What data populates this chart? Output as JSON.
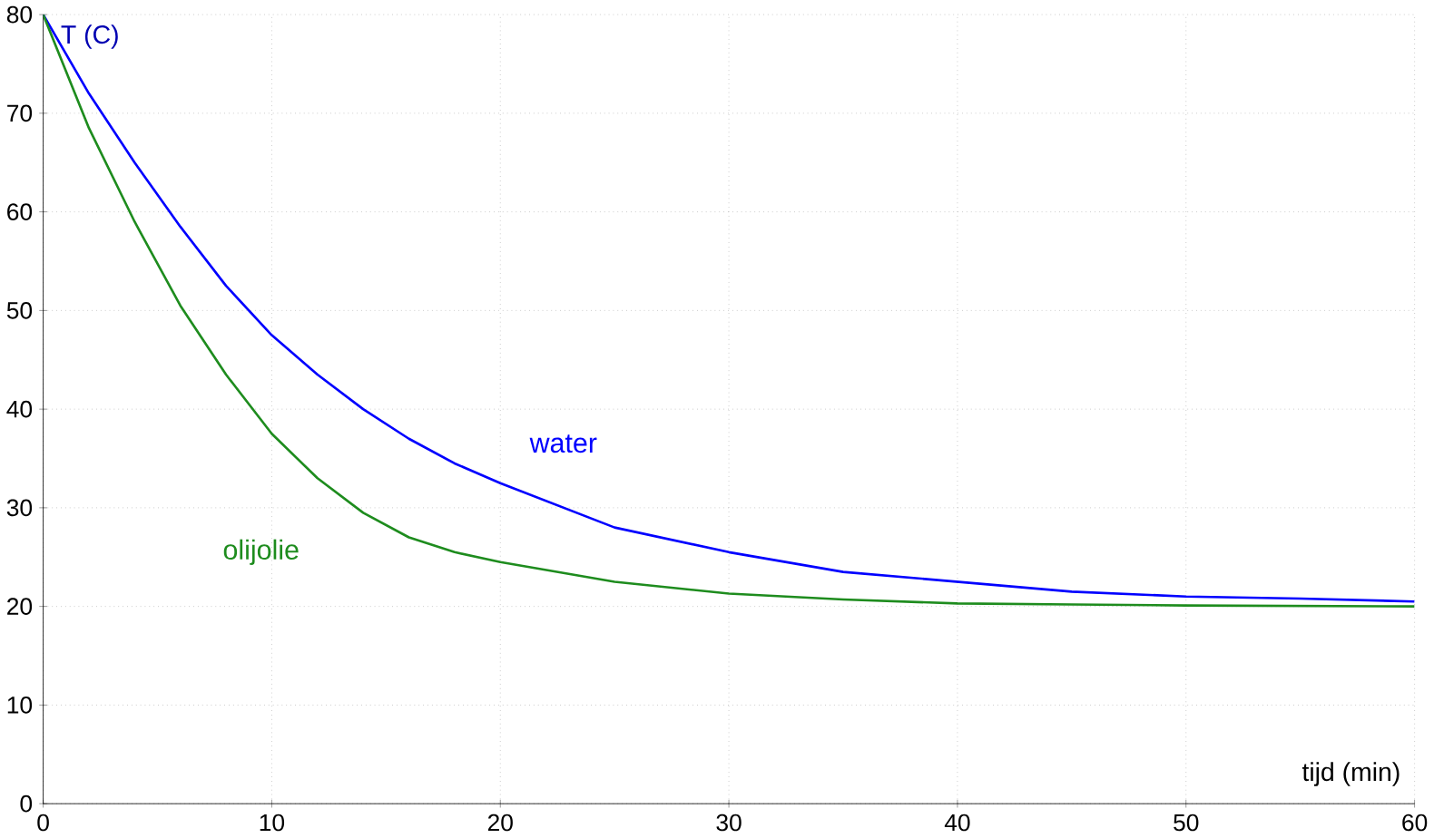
{
  "chart_data": {
    "type": "line",
    "xlabel": "tijd (min)",
    "ylabel": "T (C)",
    "xlim": [
      0,
      60
    ],
    "ylim": [
      0,
      80
    ],
    "xticks": [
      0,
      10,
      20,
      30,
      40,
      50,
      60
    ],
    "yticks": [
      0,
      10,
      20,
      30,
      40,
      50,
      60,
      70,
      80
    ],
    "grid": true,
    "marker": "none",
    "line_style": "solid",
    "series": [
      {
        "name": "water",
        "color": "#0000ff",
        "x": [
          0,
          2,
          4,
          6,
          8,
          10,
          12,
          14,
          16,
          18,
          20,
          25,
          30,
          35,
          40,
          45,
          50,
          55,
          60
        ],
        "values": [
          80,
          72,
          65,
          58.5,
          52.5,
          47.5,
          43.5,
          40,
          37,
          34.5,
          32.5,
          28,
          25.5,
          23.5,
          22.5,
          21.5,
          21,
          20.8,
          20.5
        ]
      },
      {
        "name": "olijolie",
        "color": "#1e8c1e",
        "x": [
          0,
          2,
          4,
          6,
          8,
          10,
          12,
          14,
          16,
          18,
          20,
          25,
          30,
          35,
          40,
          45,
          50,
          60
        ],
        "values": [
          80,
          68.5,
          59,
          50.5,
          43.5,
          37.5,
          33,
          29.5,
          27,
          25.5,
          24.5,
          22.5,
          21.3,
          20.7,
          20.3,
          20.2,
          20.1,
          20
        ]
      }
    ]
  }
}
